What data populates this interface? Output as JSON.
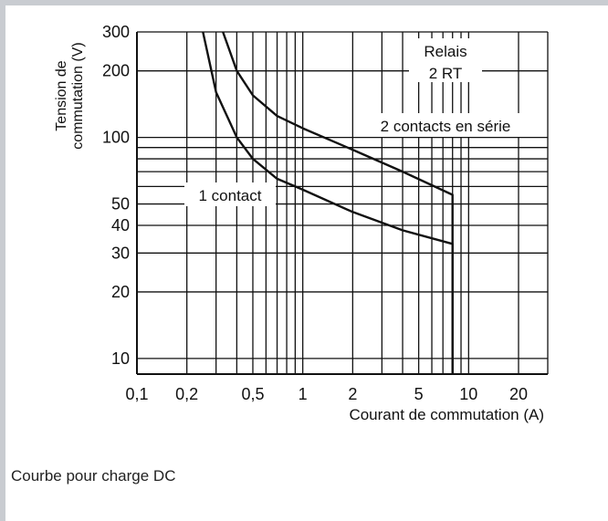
{
  "chart_data": {
    "type": "line",
    "title": "",
    "xlabel": "Courant de commutation (A)",
    "ylabel": "Tension de commutation (V)",
    "xscale": "log",
    "yscale": "log",
    "xlim": [
      0.1,
      30
    ],
    "ylim": [
      8.5,
      300
    ],
    "x_ticks": [
      {
        "value": 0.1,
        "label": "0,1"
      },
      {
        "value": 0.2,
        "label": "0,2"
      },
      {
        "value": 0.5,
        "label": "0,5"
      },
      {
        "value": 1,
        "label": "1"
      },
      {
        "value": 2,
        "label": "2"
      },
      {
        "value": 5,
        "label": "5"
      },
      {
        "value": 10,
        "label": "10"
      },
      {
        "value": 20,
        "label": "20"
      }
    ],
    "y_ticks": [
      {
        "value": 10,
        "label": "10"
      },
      {
        "value": 20,
        "label": "20"
      },
      {
        "value": 30,
        "label": "30"
      },
      {
        "value": 40,
        "label": "40"
      },
      {
        "value": 50,
        "label": "50"
      },
      {
        "value": 100,
        "label": "100"
      },
      {
        "value": 200,
        "label": "200"
      },
      {
        "value": 300,
        "label": "300"
      }
    ],
    "x_grid": [
      0.1,
      0.2,
      0.3,
      0.4,
      0.5,
      0.6,
      0.7,
      0.8,
      0.9,
      1,
      2,
      3,
      4,
      5,
      6,
      7,
      8,
      9,
      10,
      20,
      30
    ],
    "y_grid": [
      10,
      20,
      30,
      40,
      50,
      60,
      70,
      80,
      90,
      100,
      200,
      300
    ],
    "grid": true,
    "series": [
      {
        "name": "1 contact",
        "x": [
          0.25,
          0.3,
          0.4,
          0.5,
          0.7,
          1,
          2,
          4,
          8,
          8
        ],
        "y": [
          300,
          160,
          100,
          80,
          65,
          58,
          46,
          38,
          33,
          8.5
        ]
      },
      {
        "name": "2 contacts en série",
        "x": [
          0.33,
          0.4,
          0.5,
          0.7,
          1,
          2,
          4,
          8,
          8
        ],
        "y": [
          300,
          200,
          155,
          125,
          110,
          88,
          70,
          55,
          8.5
        ]
      }
    ],
    "annotations": [
      "Relais",
      "2 RT"
    ]
  },
  "caption": "Courbe pour charge DC"
}
